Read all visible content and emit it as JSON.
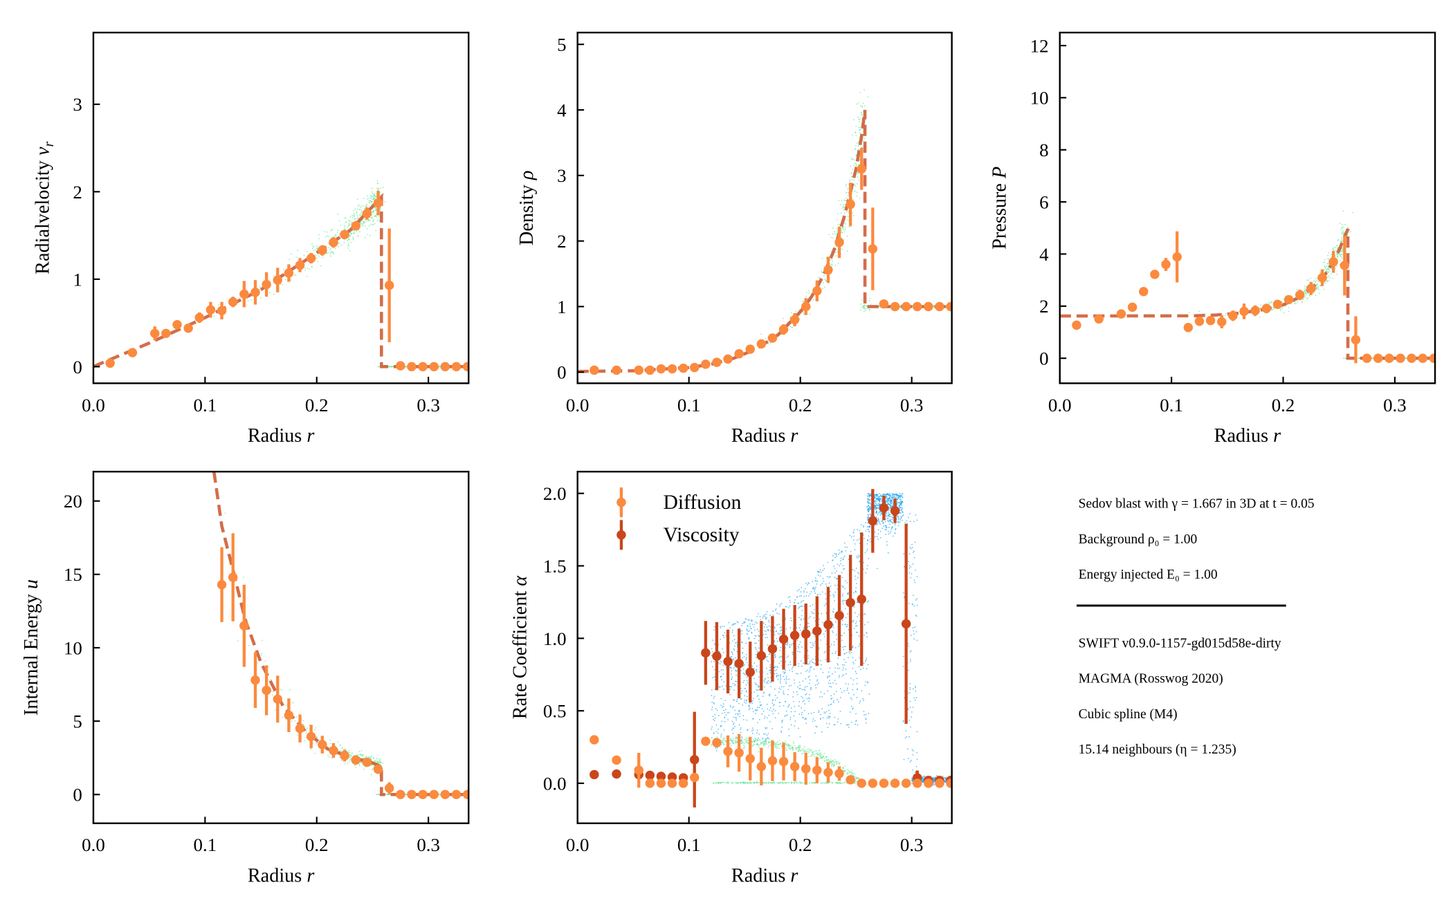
{
  "colors": {
    "particles_main": "#6fe59a",
    "particles_viscosity": "#2aa7ef",
    "analytic_line": "#cf5d36",
    "binned_points": "#fb8a3e",
    "viscosity_points": "#c9461b",
    "axes": "#000000"
  },
  "info_panel": {
    "lines_top": [
      "Sedov blast with  γ = 1.667 in 3D at t = 0.05",
      "Background ρ₀ = 1.00",
      "Energy injected E₀ = 1.00"
    ],
    "lines_bottom": [
      "SWIFT v0.9.0-1157-gd015d58e-dirty",
      "MAGMA (Rosswog 2020)",
      "Cubic spline (M4)",
      "15.14 neighbours (η = 1.235)"
    ]
  },
  "chart_data": [
    {
      "id": "velocity",
      "type": "scatter",
      "xlabel": {
        "text": "Radius ",
        "symbol": "r",
        "sub": ""
      },
      "ylabel": {
        "text": "Radialvelocity ",
        "symbol": "v",
        "sub": "r"
      },
      "xlim": [
        0,
        0.336
      ],
      "ylim": [
        -0.19,
        3.82
      ],
      "xticks": [
        0,
        0.1,
        0.2,
        0.3
      ],
      "xtick_labels": [
        "0.0",
        "0.1",
        "0.2",
        "0.3"
      ],
      "yticks": [
        0,
        1,
        2,
        3
      ],
      "ytick_labels": [
        "0",
        "1",
        "2",
        "3"
      ],
      "grid": false,
      "analytic": [
        [
          0,
          0
        ],
        [
          0.05,
          0.27
        ],
        [
          0.1,
          0.56
        ],
        [
          0.15,
          0.88
        ],
        [
          0.2,
          1.3
        ],
        [
          0.23,
          1.56
        ],
        [
          0.258,
          1.94
        ],
        [
          0.258,
          0
        ],
        [
          0.336,
          0
        ]
      ],
      "series": [
        {
          "x": [
            0.015,
            0.035,
            0.055,
            0.065,
            0.075,
            0.085,
            0.095,
            0.105,
            0.115,
            0.125,
            0.135,
            0.145,
            0.155,
            0.165,
            0.175,
            0.185,
            0.195,
            0.205,
            0.215,
            0.225,
            0.235,
            0.245,
            0.255,
            0.265,
            0.275,
            0.285,
            0.295,
            0.305,
            0.315,
            0.325,
            0.335
          ],
          "y": [
            0.04,
            0.16,
            0.38,
            0.38,
            0.48,
            0.44,
            0.56,
            0.65,
            0.64,
            0.74,
            0.83,
            0.85,
            0.94,
            0.99,
            1.07,
            1.16,
            1.24,
            1.33,
            1.42,
            1.51,
            1.61,
            1.75,
            1.87,
            0.93,
            0.01,
            0,
            0,
            0,
            0,
            0,
            0
          ],
          "yerr": [
            0.01,
            0.02,
            0.08,
            0.03,
            0.03,
            0.03,
            0.06,
            0.09,
            0.1,
            0.06,
            0.15,
            0.14,
            0.14,
            0.14,
            0.1,
            0.08,
            0.06,
            0.06,
            0.06,
            0.05,
            0.05,
            0.07,
            0.14,
            0.65,
            0.02,
            0,
            0,
            0,
            0,
            0,
            0
          ],
          "color": "#fb8a3e"
        }
      ]
    },
    {
      "id": "density",
      "type": "scatter",
      "xlabel": {
        "text": "Radius ",
        "symbol": "r",
        "sub": ""
      },
      "ylabel": {
        "text": "Density ",
        "symbol": "ρ",
        "sub": ""
      },
      "xlim": [
        0,
        0.336
      ],
      "ylim": [
        -0.17,
        5.18
      ],
      "xticks": [
        0,
        0.1,
        0.2,
        0.3
      ],
      "xtick_labels": [
        "0.0",
        "0.1",
        "0.2",
        "0.3"
      ],
      "yticks": [
        0,
        1,
        2,
        3,
        4,
        5
      ],
      "ytick_labels": [
        "0",
        "1",
        "2",
        "3",
        "4",
        "5"
      ],
      "grid": false,
      "analytic": [
        [
          0,
          0.01
        ],
        [
          0.05,
          0.02
        ],
        [
          0.1,
          0.07
        ],
        [
          0.12,
          0.12
        ],
        [
          0.14,
          0.21
        ],
        [
          0.16,
          0.35
        ],
        [
          0.18,
          0.57
        ],
        [
          0.2,
          0.92
        ],
        [
          0.21,
          1.15
        ],
        [
          0.22,
          1.45
        ],
        [
          0.23,
          1.85
        ],
        [
          0.24,
          2.4
        ],
        [
          0.25,
          3.1
        ],
        [
          0.255,
          3.6
        ],
        [
          0.258,
          4.0
        ],
        [
          0.258,
          1.0
        ],
        [
          0.336,
          1.0
        ]
      ],
      "series": [
        {
          "x": [
            0.015,
            0.035,
            0.055,
            0.065,
            0.075,
            0.085,
            0.095,
            0.105,
            0.115,
            0.125,
            0.135,
            0.145,
            0.155,
            0.165,
            0.175,
            0.185,
            0.195,
            0.205,
            0.215,
            0.225,
            0.235,
            0.245,
            0.255,
            0.265,
            0.275,
            0.285,
            0.295,
            0.305,
            0.315,
            0.325,
            0.335
          ],
          "y": [
            0.03,
            0.03,
            0.03,
            0.03,
            0.05,
            0.05,
            0.06,
            0.07,
            0.12,
            0.15,
            0.2,
            0.28,
            0.35,
            0.43,
            0.52,
            0.65,
            0.8,
            1.0,
            1.24,
            1.56,
            1.98,
            2.56,
            3.1,
            1.88,
            1.04,
            1,
            1,
            1,
            1,
            1,
            1
          ],
          "yerr": [
            0,
            0,
            0,
            0,
            0,
            0,
            0,
            0,
            0.01,
            0.02,
            0.02,
            0.03,
            0.03,
            0.04,
            0.05,
            0.08,
            0.1,
            0.13,
            0.16,
            0.2,
            0.24,
            0.33,
            0.32,
            0.63,
            0.02,
            0,
            0,
            0,
            0,
            0,
            0
          ],
          "color": "#fb8a3e"
        }
      ]
    },
    {
      "id": "pressure",
      "type": "scatter",
      "xlabel": {
        "text": "Radius ",
        "symbol": "r",
        "sub": ""
      },
      "ylabel": {
        "text": "Pressure ",
        "symbol": "P",
        "sub": ""
      },
      "xlim": [
        0,
        0.336
      ],
      "ylim": [
        -0.96,
        12.5
      ],
      "xticks": [
        0,
        0.1,
        0.2,
        0.3
      ],
      "xtick_labels": [
        "0.0",
        "0.1",
        "0.2",
        "0.3"
      ],
      "yticks": [
        0,
        2,
        4,
        6,
        8,
        10,
        12
      ],
      "ytick_labels": [
        "0",
        "2",
        "4",
        "6",
        "8",
        "10",
        "12"
      ],
      "grid": false,
      "analytic": [
        [
          0,
          1.62
        ],
        [
          0.12,
          1.63
        ],
        [
          0.14,
          1.66
        ],
        [
          0.16,
          1.73
        ],
        [
          0.18,
          1.85
        ],
        [
          0.2,
          2.05
        ],
        [
          0.215,
          2.35
        ],
        [
          0.23,
          2.85
        ],
        [
          0.24,
          3.35
        ],
        [
          0.25,
          4.15
        ],
        [
          0.258,
          4.96
        ],
        [
          0.258,
          0
        ],
        [
          0.336,
          0
        ]
      ],
      "series": [
        {
          "x": [
            0.015,
            0.035,
            0.055,
            0.065,
            0.075,
            0.085,
            0.095,
            0.105,
            0.115,
            0.125,
            0.135,
            0.145,
            0.155,
            0.165,
            0.175,
            0.185,
            0.195,
            0.205,
            0.215,
            0.225,
            0.235,
            0.245,
            0.255,
            0.265,
            0.275,
            0.285,
            0.295,
            0.305,
            0.315,
            0.325,
            0.335
          ],
          "y": [
            1.27,
            1.51,
            1.7,
            1.96,
            2.56,
            3.22,
            3.6,
            3.89,
            1.18,
            1.42,
            1.45,
            1.4,
            1.63,
            1.8,
            1.83,
            1.91,
            2.07,
            2.25,
            2.43,
            2.68,
            3.09,
            3.7,
            3.56,
            0.71,
            0,
            0,
            0,
            0,
            0,
            0,
            0
          ],
          "yerr": [
            0,
            0,
            0,
            0,
            0,
            0,
            0.25,
            0.98,
            0,
            0.1,
            0.1,
            0.25,
            0.2,
            0.3,
            0.2,
            0.15,
            0.15,
            0.15,
            0.2,
            0.25,
            0.32,
            0.42,
            1.15,
            0.9,
            0,
            0,
            0,
            0,
            0,
            0,
            0
          ],
          "color": "#fb8a3e"
        }
      ]
    },
    {
      "id": "internal-energy",
      "type": "scatter",
      "xlabel": {
        "text": "Radius ",
        "symbol": "r",
        "sub": ""
      },
      "ylabel": {
        "text": "Internal Energy ",
        "symbol": "u",
        "sub": ""
      },
      "xlim": [
        0,
        0.336
      ],
      "ylim": [
        -1.96,
        22.0
      ],
      "xticks": [
        0,
        0.1,
        0.2,
        0.3
      ],
      "xtick_labels": [
        "0.0",
        "0.1",
        "0.2",
        "0.3"
      ],
      "yticks": [
        0,
        5,
        10,
        15,
        20
      ],
      "ytick_labels": [
        "0",
        "5",
        "10",
        "15",
        "20"
      ],
      "grid": false,
      "analytic": [
        [
          0.108,
          22
        ],
        [
          0.115,
          18.3
        ],
        [
          0.126,
          15.0
        ],
        [
          0.136,
          11.9
        ],
        [
          0.15,
          9.0
        ],
        [
          0.17,
          6.0
        ],
        [
          0.19,
          4.3
        ],
        [
          0.21,
          3.1
        ],
        [
          0.23,
          2.55
        ],
        [
          0.25,
          2.15
        ],
        [
          0.258,
          1.9
        ],
        [
          0.258,
          0
        ],
        [
          0.336,
          0
        ]
      ],
      "series": [
        {
          "x": [
            0.115,
            0.125,
            0.135,
            0.145,
            0.155,
            0.165,
            0.175,
            0.185,
            0.195,
            0.205,
            0.215,
            0.225,
            0.235,
            0.245,
            0.255,
            0.265,
            0.275,
            0.285,
            0.295,
            0.305,
            0.315,
            0.325,
            0.335
          ],
          "y": [
            14.3,
            14.8,
            11.5,
            7.8,
            7.1,
            6.5,
            5.4,
            4.5,
            3.95,
            3.4,
            3.0,
            2.65,
            2.35,
            2.2,
            1.72,
            0.43,
            0,
            0,
            0,
            0,
            0,
            0,
            0
          ],
          "yerr": [
            2.55,
            3.0,
            2.8,
            1.9,
            1.7,
            1.6,
            1.15,
            0.95,
            0.8,
            0.6,
            0.5,
            0.4,
            0.2,
            0.15,
            0.3,
            0.4,
            0,
            0,
            0,
            0,
            0,
            0,
            0
          ],
          "color": "#fb8a3e"
        }
      ]
    },
    {
      "id": "rate-coefficient",
      "type": "scatter",
      "xlabel": {
        "text": "Radius ",
        "symbol": "r",
        "sub": ""
      },
      "ylabel": {
        "text": "Rate Coefficient ",
        "symbol": "α",
        "sub": ""
      },
      "xlim": [
        0,
        0.336
      ],
      "ylim": [
        -0.276,
        2.15
      ],
      "xticks": [
        0,
        0.1,
        0.2,
        0.3
      ],
      "xtick_labels": [
        "0.0",
        "0.1",
        "0.2",
        "0.3"
      ],
      "yticks": [
        0,
        0.5,
        1,
        1.5,
        2
      ],
      "ytick_labels": [
        "0.0",
        "0.5",
        "1.0",
        "1.5",
        "2.0"
      ],
      "grid": false,
      "legend": "top-left",
      "series": [
        {
          "name": "Viscosity",
          "x": [
            0.015,
            0.035,
            0.055,
            0.065,
            0.075,
            0.085,
            0.095,
            0.105,
            0.115,
            0.125,
            0.135,
            0.145,
            0.155,
            0.165,
            0.175,
            0.185,
            0.195,
            0.205,
            0.215,
            0.225,
            0.235,
            0.245,
            0.255,
            0.265,
            0.275,
            0.285,
            0.295,
            0.305,
            0.315,
            0.325,
            0.335
          ],
          "y": [
            0.06,
            0.064,
            0.06,
            0.055,
            0.048,
            0.043,
            0.038,
            0.163,
            0.9,
            0.877,
            0.84,
            0.826,
            0.767,
            0.88,
            0.927,
            0.994,
            1.02,
            1.03,
            1.05,
            1.094,
            1.157,
            1.246,
            1.27,
            1.81,
            1.9,
            1.88,
            1.1,
            0.038,
            0.02,
            0.02,
            0.02
          ],
          "yerr": [
            0,
            0,
            0,
            0,
            0,
            0,
            0,
            0.33,
            0.22,
            0.235,
            0.22,
            0.24,
            0.21,
            0.24,
            0.226,
            0.21,
            0.21,
            0.21,
            0.24,
            0.26,
            0.28,
            0.33,
            0.46,
            0.22,
            0.085,
            0.085,
            0.69,
            0.05,
            0,
            0,
            0
          ],
          "color": "#c9461b"
        },
        {
          "name": "Diffusion",
          "x": [
            0.015,
            0.035,
            0.055,
            0.065,
            0.075,
            0.085,
            0.095,
            0.105,
            0.115,
            0.125,
            0.135,
            0.145,
            0.155,
            0.165,
            0.175,
            0.185,
            0.195,
            0.205,
            0.215,
            0.225,
            0.235,
            0.245,
            0.255,
            0.265,
            0.275,
            0.285,
            0.295,
            0.305,
            0.315,
            0.325,
            0.335
          ],
          "y": [
            0.3,
            0.16,
            0.09,
            0,
            0,
            0,
            0,
            0.04,
            0.29,
            0.28,
            0.22,
            0.21,
            0.17,
            0.115,
            0.155,
            0.15,
            0.115,
            0.1,
            0.09,
            0.075,
            0.067,
            0.024,
            0,
            0,
            0,
            0,
            0,
            0,
            0,
            0,
            0
          ],
          "yerr": [
            0,
            0,
            0.12,
            0,
            0,
            0,
            0,
            0,
            0,
            0,
            0.11,
            0.13,
            0.15,
            0.13,
            0.14,
            0.13,
            0.1,
            0.11,
            0.09,
            0.07,
            0.05,
            0,
            0,
            0,
            0,
            0,
            0,
            0,
            0,
            0,
            0
          ],
          "color": "#fb8a3e"
        }
      ],
      "legend_entries": [
        "Diffusion",
        "Viscosity"
      ]
    }
  ]
}
